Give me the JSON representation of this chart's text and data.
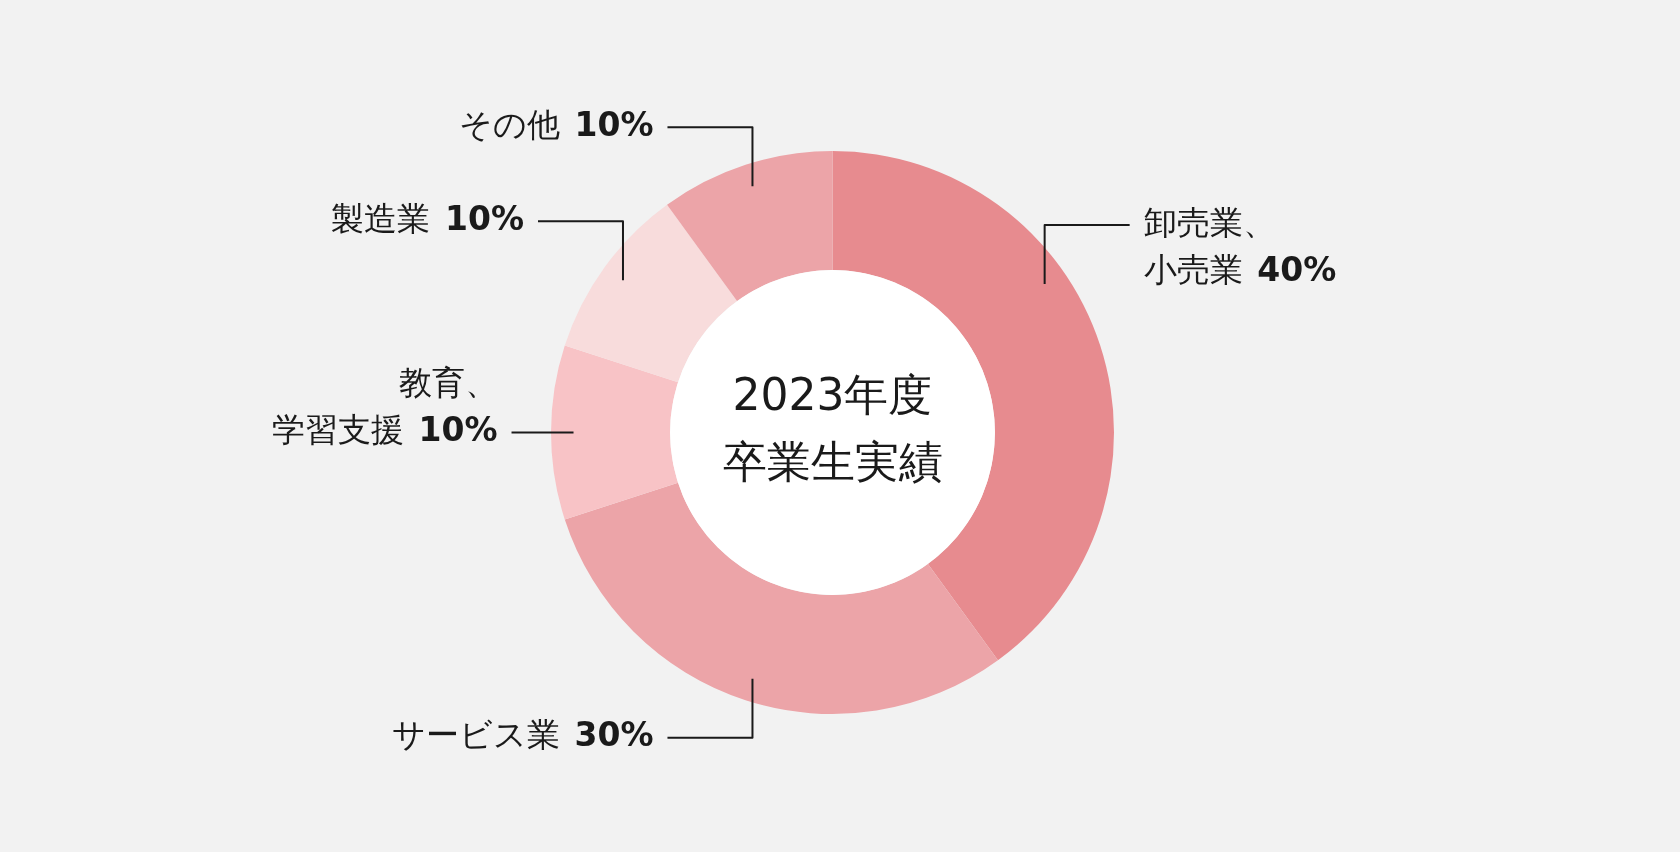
{
  "chart_data": {
    "type": "donut",
    "title": "2023年度卒業生実績",
    "categories": [
      "卸売業、小売業",
      "サービス業",
      "教育、学習支援",
      "製造業",
      "その他"
    ],
    "values": [
      40,
      30,
      10,
      10,
      10
    ],
    "colors": [
      "#e78b8f",
      "#eca4a8",
      "#f8c3c6",
      "#f8dcdc",
      "#eca4a8"
    ],
    "value_labels": [
      "40%",
      "30%",
      "10%",
      "10%",
      "10%"
    ],
    "legend": false
  }
}
